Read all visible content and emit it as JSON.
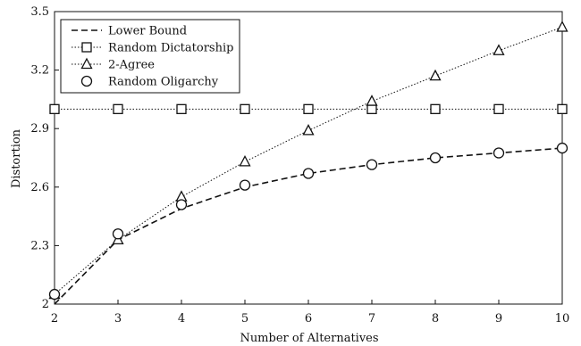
{
  "chart_data": {
    "type": "line",
    "title": "",
    "xlabel": "Number of Alternatives",
    "ylabel": "Distortion",
    "x": [
      2,
      3,
      4,
      5,
      6,
      7,
      8,
      9,
      10
    ],
    "xlim": [
      2,
      10
    ],
    "ylim": [
      2,
      3.5
    ],
    "xticks": [
      "2",
      "3",
      "4",
      "5",
      "6",
      "7",
      "8",
      "9",
      "10"
    ],
    "yticks": [
      "2",
      "2.3",
      "2.6",
      "2.9",
      "3.2",
      "3.5"
    ],
    "ytick_values": [
      2,
      2.3,
      2.6,
      2.9,
      3.2,
      3.5
    ],
    "grid": false,
    "legend_position": "top-left",
    "series": [
      {
        "name": "Lower Bound",
        "line": "dashed",
        "marker": "none",
        "color": "#111111",
        "values": [
          2.0,
          2.33,
          2.49,
          2.6,
          2.67,
          2.715,
          2.75,
          2.775,
          2.8
        ]
      },
      {
        "name": "Random Dictatorship",
        "line": "dotted",
        "marker": "square",
        "color": "#111111",
        "values": [
          3.0,
          3.0,
          3.0,
          3.0,
          3.0,
          3.0,
          3.0,
          3.0,
          3.0
        ]
      },
      {
        "name": "2-Agree",
        "line": "dotted",
        "marker": "triangle",
        "color": "#111111",
        "values": [
          2.05,
          2.33,
          2.55,
          2.73,
          2.89,
          3.04,
          3.17,
          3.3,
          3.42
        ]
      },
      {
        "name": "Random Oligarchy",
        "line": "none",
        "marker": "circle",
        "color": "#111111",
        "values": [
          2.05,
          2.36,
          2.51,
          2.61,
          2.67,
          2.715,
          2.75,
          2.775,
          2.8
        ]
      }
    ]
  }
}
